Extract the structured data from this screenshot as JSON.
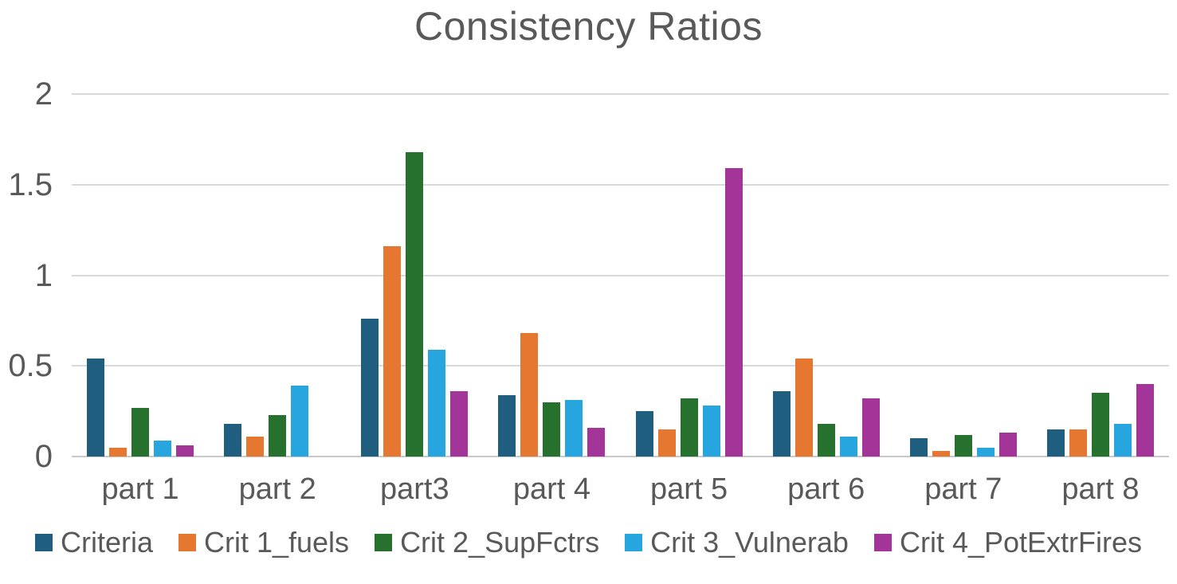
{
  "chart_data": {
    "type": "bar",
    "title": "Consistency Ratios",
    "xlabel": "",
    "ylabel": "",
    "ylim": [
      0,
      2
    ],
    "yticks": [
      "0",
      "0.5",
      "1",
      "1.5",
      "2"
    ],
    "grid": true,
    "legend_position": "bottom",
    "categories": [
      "part 1",
      "part 2",
      "part3",
      "part 4",
      "part 5",
      "part 6",
      "part 7",
      "part 8"
    ],
    "series": [
      {
        "name": "Criteria",
        "color": "#1F5E7E",
        "values": [
          0.54,
          0.18,
          0.76,
          0.34,
          0.25,
          0.36,
          0.1,
          0.15
        ]
      },
      {
        "name": "Crit 1_fuels",
        "color": "#E57730",
        "values": [
          0.05,
          0.11,
          1.16,
          0.68,
          0.15,
          0.54,
          0.03,
          0.15
        ]
      },
      {
        "name": "Crit 2_SupFctrs",
        "color": "#27712E",
        "values": [
          0.27,
          0.23,
          1.68,
          0.3,
          0.32,
          0.18,
          0.12,
          0.35
        ]
      },
      {
        "name": "Crit 3_Vulnerab",
        "color": "#27A5DF",
        "values": [
          0.09,
          0.39,
          0.59,
          0.31,
          0.28,
          0.11,
          0.05,
          0.18
        ]
      },
      {
        "name": "Crit 4_PotExtrFires",
        "color": "#A23597",
        "values": [
          0.06,
          0.0,
          0.36,
          0.16,
          1.59,
          0.32,
          0.13,
          0.4
        ]
      }
    ]
  },
  "colors": {
    "title_text": "#595959",
    "axis_text": "#595959",
    "gridline": "#D9D9D9",
    "baseline": "#C9C9C9",
    "background": "#FFFFFF"
  }
}
